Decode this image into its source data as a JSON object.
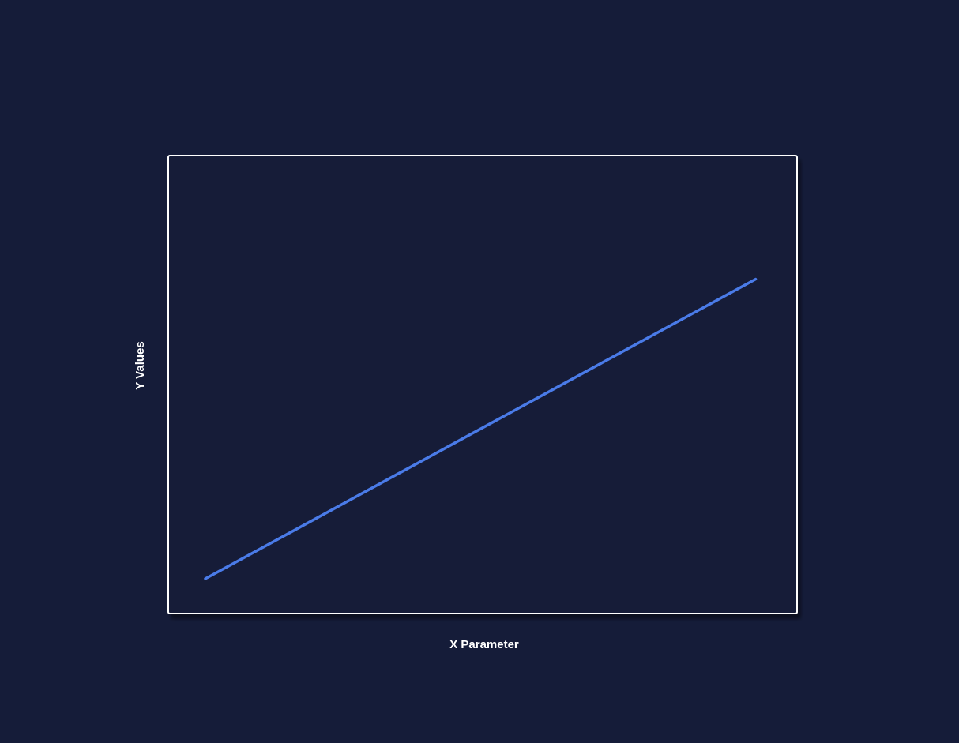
{
  "colors": {
    "background": "#151c39",
    "plot_border": "#ffffff",
    "series": "#4a7be8",
    "text": "#ffffff"
  },
  "chart_data": {
    "type": "line",
    "title": "",
    "xlabel": "X Parameter",
    "ylabel": "Y Values",
    "xlim": [
      0,
      1
    ],
    "ylim": [
      0,
      1
    ],
    "grid": false,
    "x_ticks_visible": false,
    "y_ticks_visible": false,
    "series": [
      {
        "x": [
          0.059,
          0.934
        ],
        "y": [
          0.076,
          0.73
        ]
      }
    ]
  }
}
